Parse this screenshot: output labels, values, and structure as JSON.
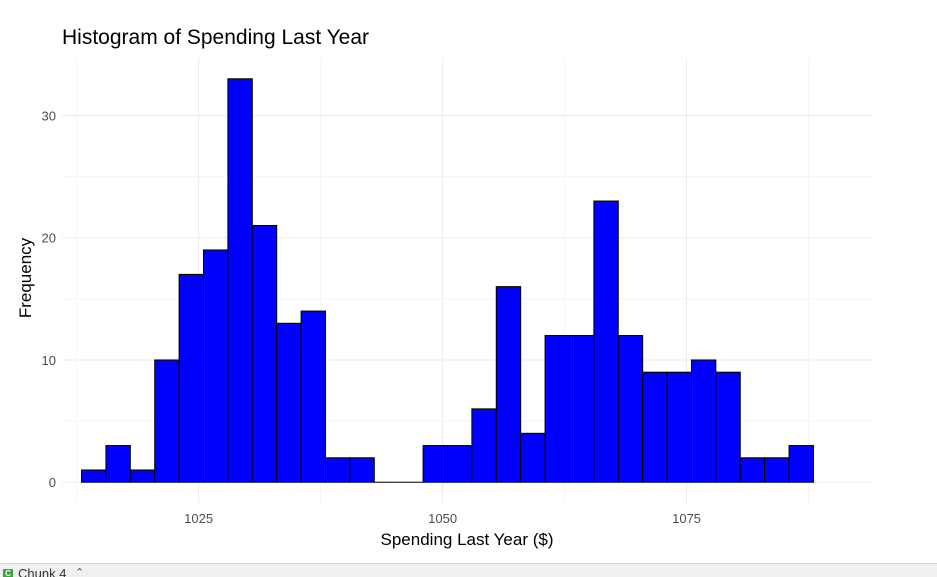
{
  "chart_data": {
    "type": "bar",
    "title": "Histogram of Spending Last Year",
    "xlabel": "Spending Last Year ($)",
    "ylabel": "Frequency",
    "xlim": [
      1011,
      1094
    ],
    "ylim": [
      -1.7,
      34.7
    ],
    "xticks": [
      1025,
      1050,
      1075
    ],
    "yticks": [
      0,
      10,
      20,
      30
    ],
    "tick_labels_x": [
      "1025",
      "1050",
      "1075"
    ],
    "tick_labels_y": [
      "0",
      "10",
      "20",
      "30"
    ],
    "bin_width": 2.5,
    "bin_start": 1013.0,
    "values": [
      1,
      3,
      1,
      10,
      17,
      19,
      33,
      21,
      13,
      14,
      2,
      2,
      0,
      0,
      3,
      3,
      6,
      16,
      4,
      12,
      12,
      23,
      12,
      9,
      9,
      10,
      9,
      2,
      2,
      3
    ],
    "bar_color": "#0000ff",
    "bar_outline": "#000000",
    "grid": true,
    "legend": "none"
  },
  "footer": {
    "icon": "chunk-icon",
    "label": "Chunk 4",
    "caret": "⌃"
  }
}
